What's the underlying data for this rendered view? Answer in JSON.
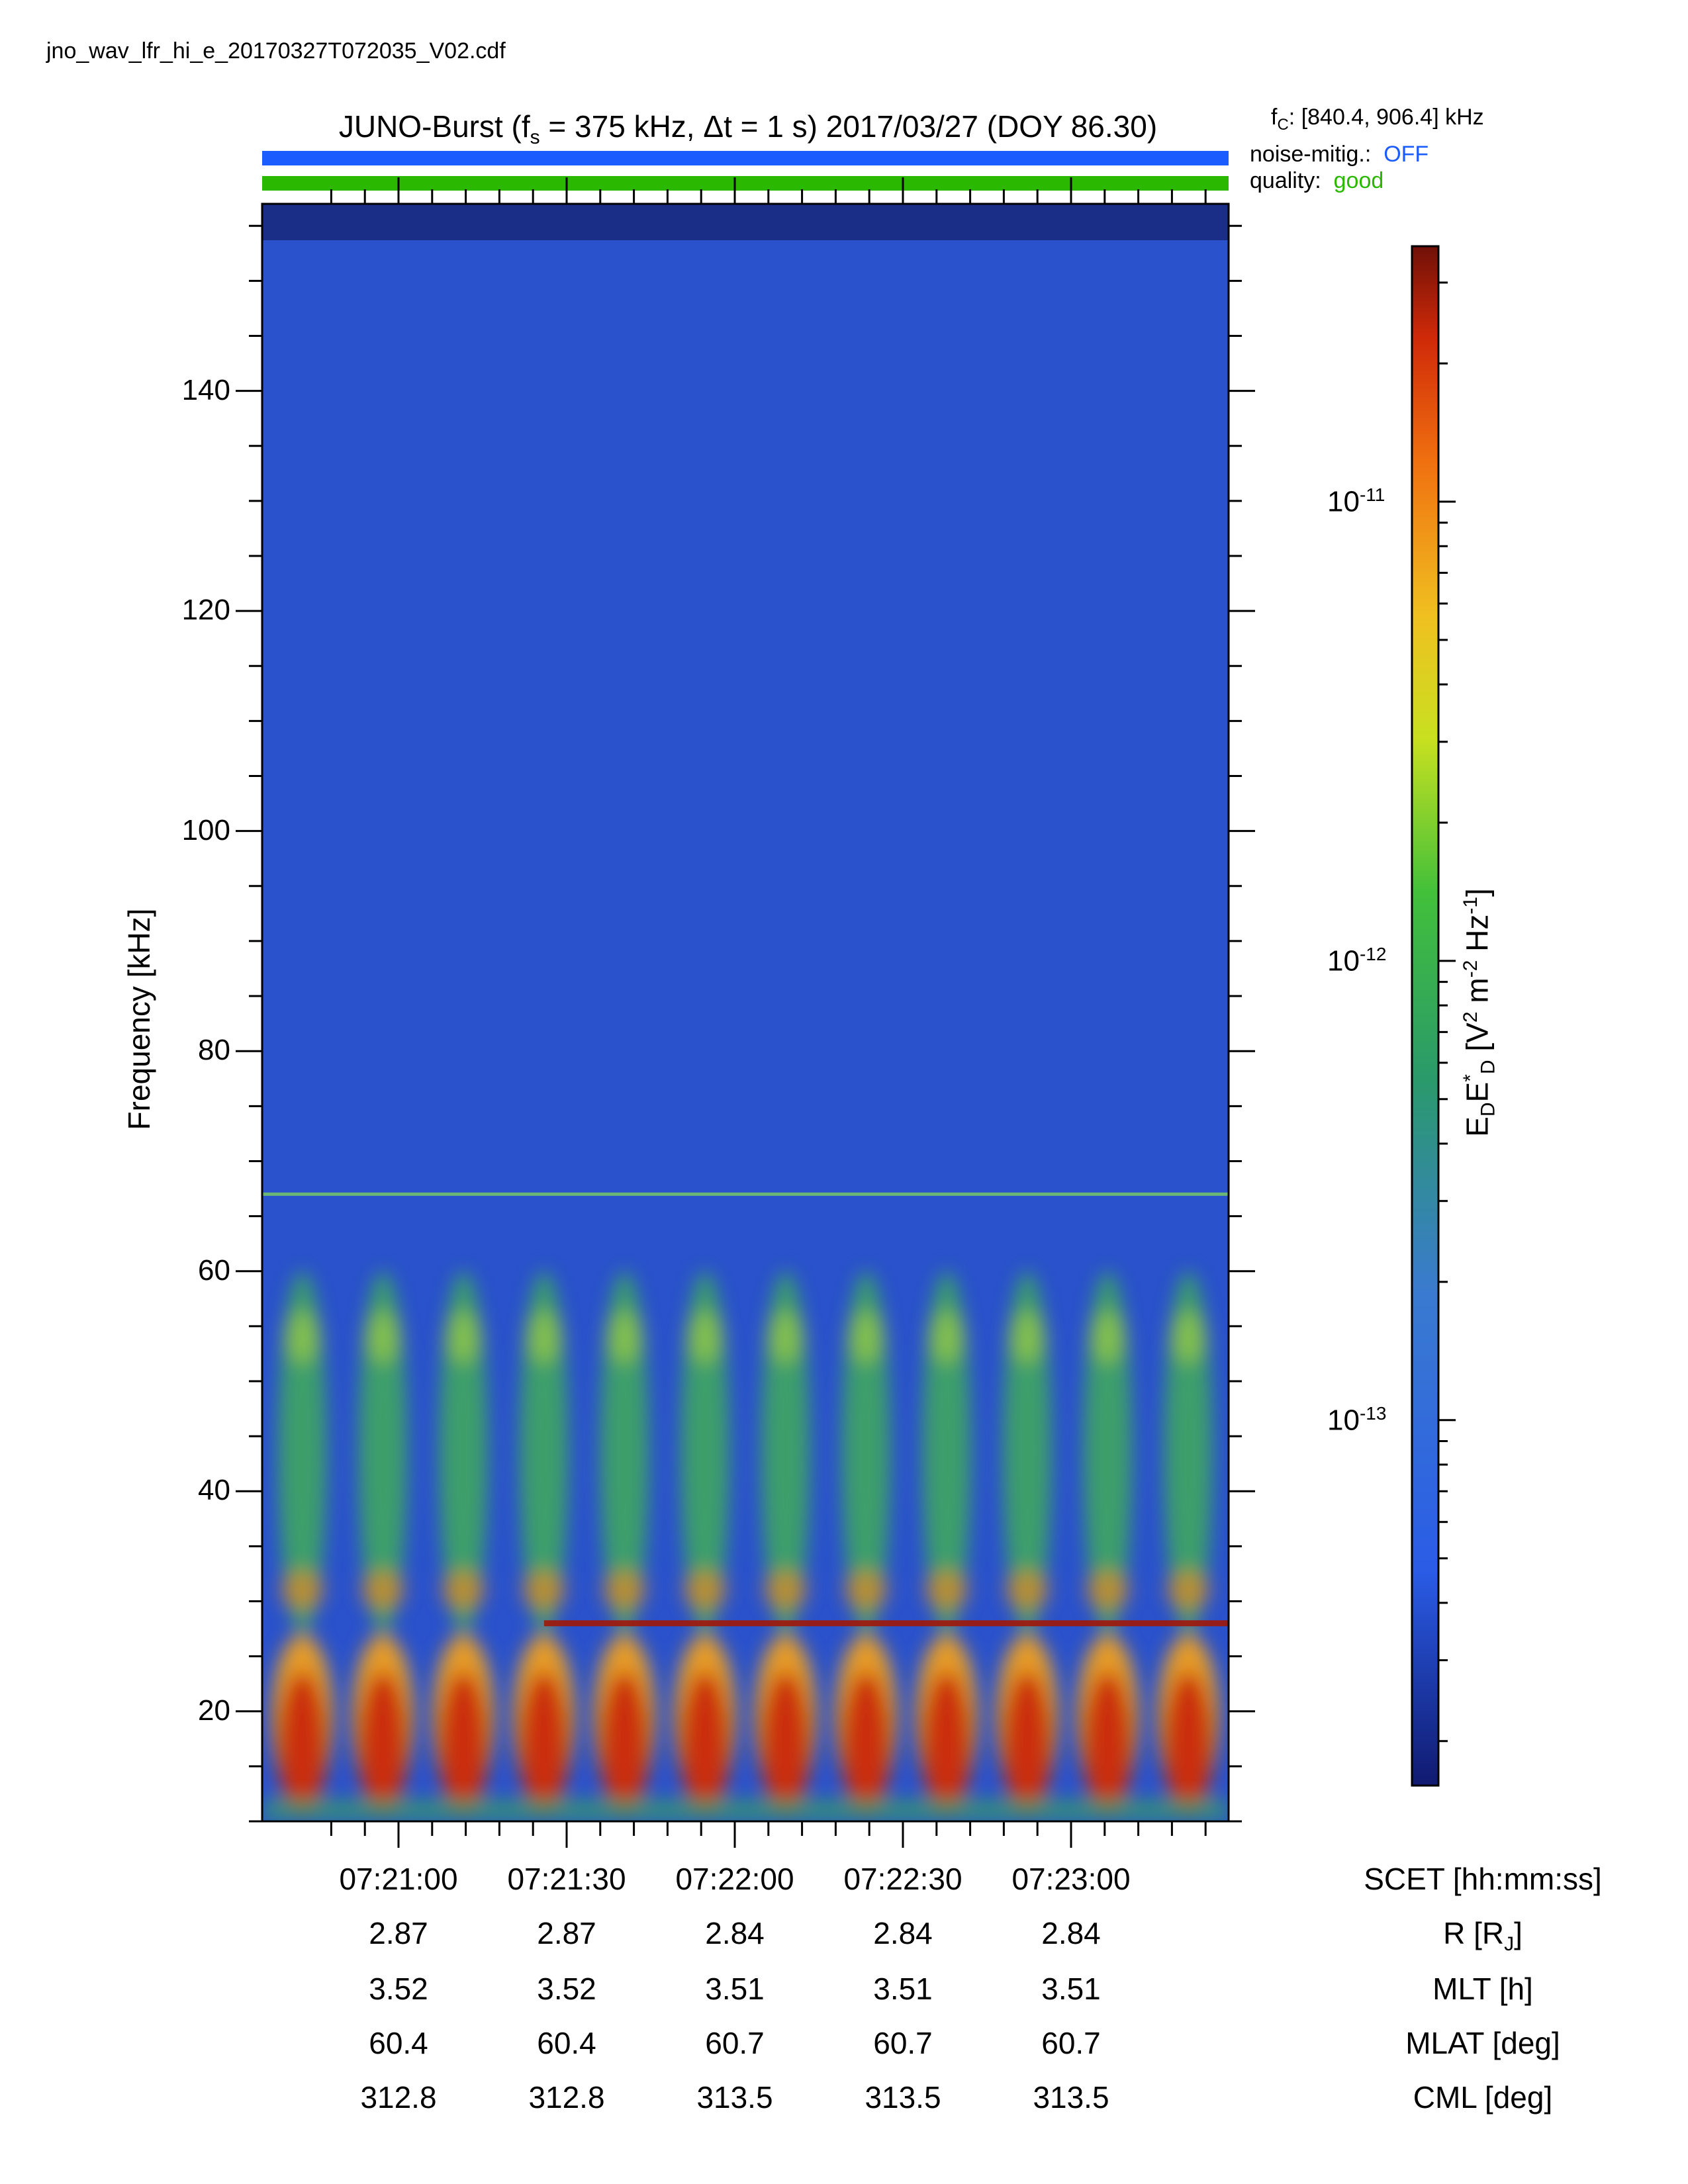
{
  "filename": "jno_wav_lfr_hi_e_20170327T072035_V02.cdf",
  "title": {
    "prefix": "JUNO-Burst (f",
    "sub": "s",
    "middle": " = 375 kHz, Δt = 1 s)  2017/03/27 (DOY 86.30)"
  },
  "fc": {
    "prefix": "f",
    "sub": "C",
    "value": ": [840.4, 906.4] kHz"
  },
  "status": {
    "noise_label": "noise-mitig.:",
    "noise_value": "OFF",
    "noise_color": "#1a5cff",
    "quality_label": "quality:",
    "quality_value": "good",
    "quality_color": "#2ab800"
  },
  "chart_data": {
    "type": "heatmap",
    "ylabel": "Frequency [kHz]",
    "ylim": [
      10,
      157
    ],
    "y_ticks": [
      20,
      40,
      60,
      80,
      100,
      120,
      140
    ],
    "colorbar": {
      "label_main": "E",
      "label_sub1": "D",
      "label_mid": "E",
      "label_sup": "*",
      "label_sub2": "D",
      "label_units": " [V",
      "label_u1": "2",
      "label_m": " m",
      "label_u2": "-2",
      "label_hz": " Hz",
      "label_u3": "-1",
      "label_end": "]",
      "scale": "log",
      "range": [
        1.6e-14,
        3.6e-11
      ],
      "ticks": [
        {
          "value": 1e-11,
          "base": "10",
          "exp": "-11"
        },
        {
          "value": 1e-12,
          "base": "10",
          "exp": "-12"
        },
        {
          "value": 1e-13,
          "base": "10",
          "exp": "-13"
        }
      ]
    },
    "x_axis": {
      "label": "SCET [hh:mm:ss]",
      "ticks": [
        "07:21:00",
        "07:21:30",
        "07:22:00",
        "07:22:30",
        "07:23:00"
      ]
    },
    "ephemeris_rows": [
      {
        "label": "R [R",
        "label_sub": "J",
        "label_end": "]",
        "values": [
          "2.87",
          "2.87",
          "2.84",
          "2.84",
          "2.84"
        ]
      },
      {
        "label": "MLT [h]",
        "values": [
          "3.52",
          "3.52",
          "3.51",
          "3.51",
          "3.51"
        ]
      },
      {
        "label": "MLAT [deg]",
        "values": [
          "60.4",
          "60.4",
          "60.7",
          "60.7",
          "60.7"
        ]
      },
      {
        "label": "CML [deg]",
        "values": [
          "312.8",
          "312.8",
          "313.5",
          "313.5",
          "313.5"
        ]
      }
    ],
    "features": {
      "bursts": 12,
      "strong_band_khz": [
        12,
        27
      ],
      "mid_band_khz": [
        27,
        60
      ],
      "line_khz": [
        67,
        28
      ]
    }
  }
}
